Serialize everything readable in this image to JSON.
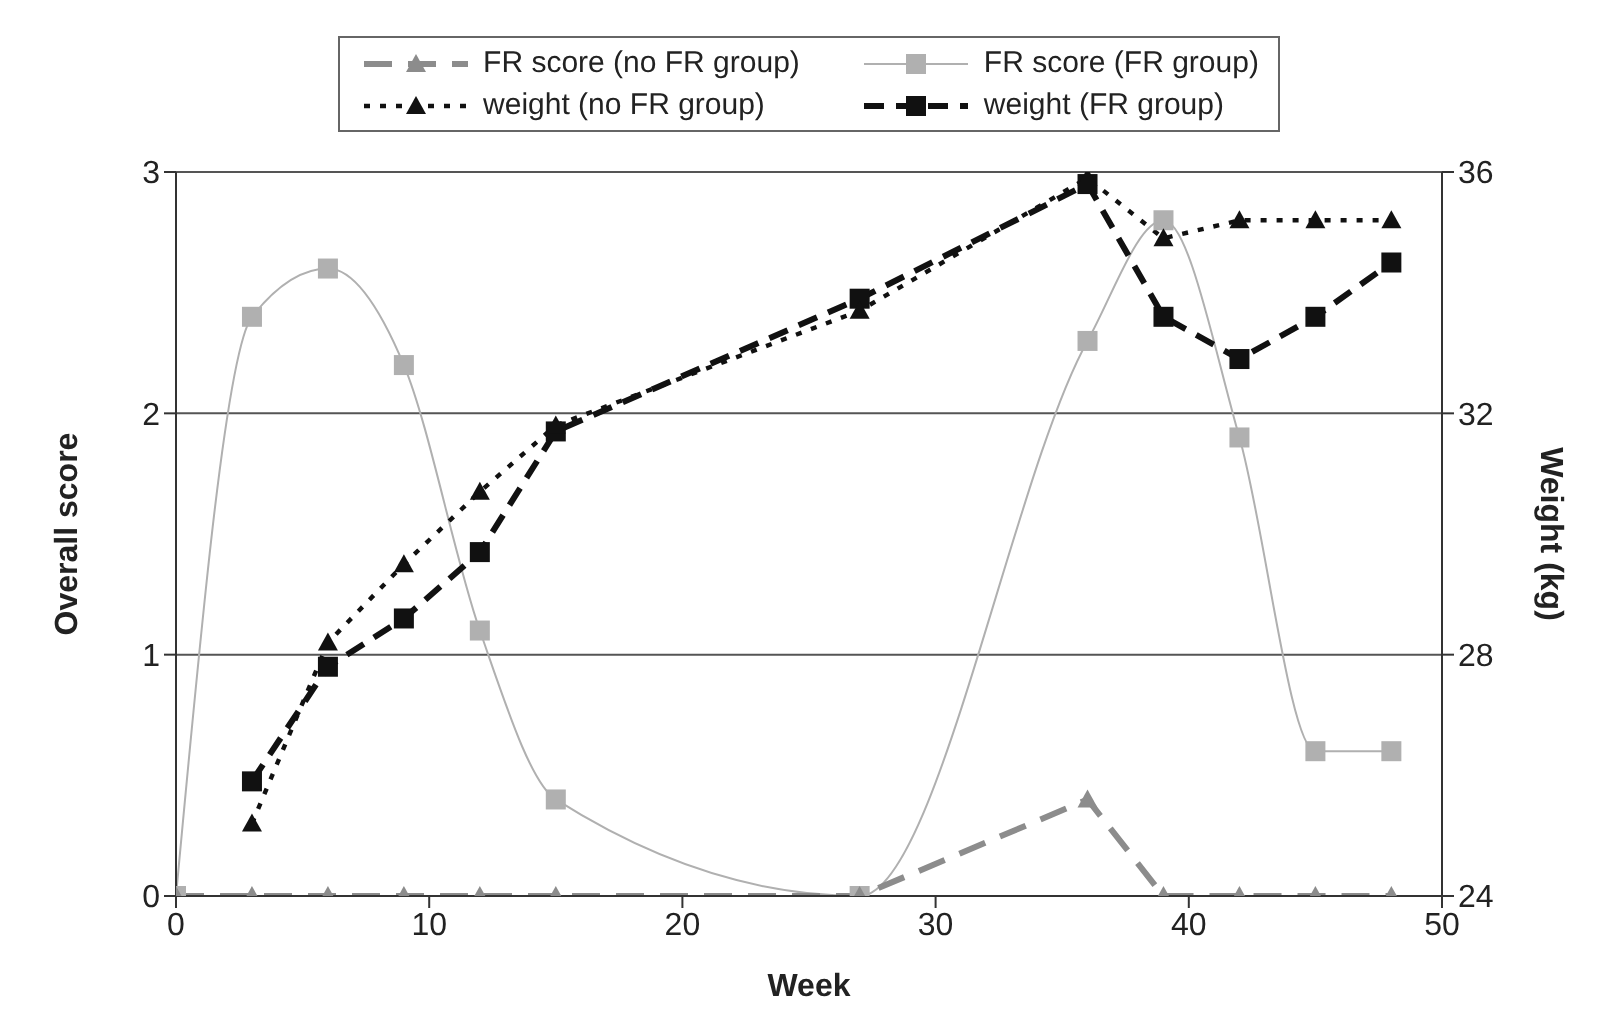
{
  "chart_data": {
    "type": "line",
    "xlabel": "Week",
    "ylabel": "Overall score",
    "y2label": "Weight (kg)",
    "xlim": [
      0,
      50
    ],
    "xticks": [
      0,
      10,
      20,
      30,
      40,
      50
    ],
    "ylim": [
      0,
      3
    ],
    "yticks": [
      0,
      1,
      2,
      3
    ],
    "y2lim": [
      24,
      36
    ],
    "y2ticks": [
      24,
      28,
      32,
      36
    ],
    "grid": "y",
    "legend": "top",
    "series": [
      {
        "name": "FR score (no FR group)",
        "color": "#8c8c8c",
        "marker": "triangle",
        "line_style": "dashed",
        "x": [
          0,
          3,
          6,
          9,
          12,
          15,
          27,
          36,
          39,
          42,
          45,
          48
        ],
        "values": [
          0,
          0,
          0,
          0,
          0,
          0,
          0,
          0.4,
          0,
          0,
          0,
          0
        ]
      },
      {
        "name": "FR score (FR group)",
        "color": "#b0b0b0",
        "marker": "square",
        "line_style": "solid",
        "x": [
          0,
          3,
          6,
          9,
          12,
          15,
          27,
          36,
          39,
          42,
          45,
          48
        ],
        "values": [
          0,
          2.4,
          2.6,
          2.2,
          1.1,
          0.4,
          0,
          2.3,
          2.8,
          1.9,
          0.6,
          0.6
        ]
      },
      {
        "name": "weight (no FR group)",
        "color": "#111111",
        "marker": "triangle",
        "line_style": "dotted",
        "axis": "y2",
        "x": [
          3,
          6,
          9,
          12,
          15,
          27,
          36,
          39,
          42,
          45,
          48
        ],
        "values": [
          25.2,
          28.2,
          29.5,
          30.7,
          31.8,
          33.7,
          35.9,
          34.9,
          35.2,
          35.2,
          35.2
        ]
      },
      {
        "name": "weight (FR group)",
        "color": "#111111",
        "marker": "square",
        "line_style": "dashed",
        "axis": "y2",
        "x": [
          3,
          6,
          9,
          12,
          15,
          27,
          36,
          39,
          42,
          45,
          48
        ],
        "values": [
          25.9,
          27.8,
          28.6,
          29.7,
          31.7,
          33.9,
          35.8,
          33.6,
          32.9,
          33.6,
          34.5
        ]
      }
    ]
  }
}
